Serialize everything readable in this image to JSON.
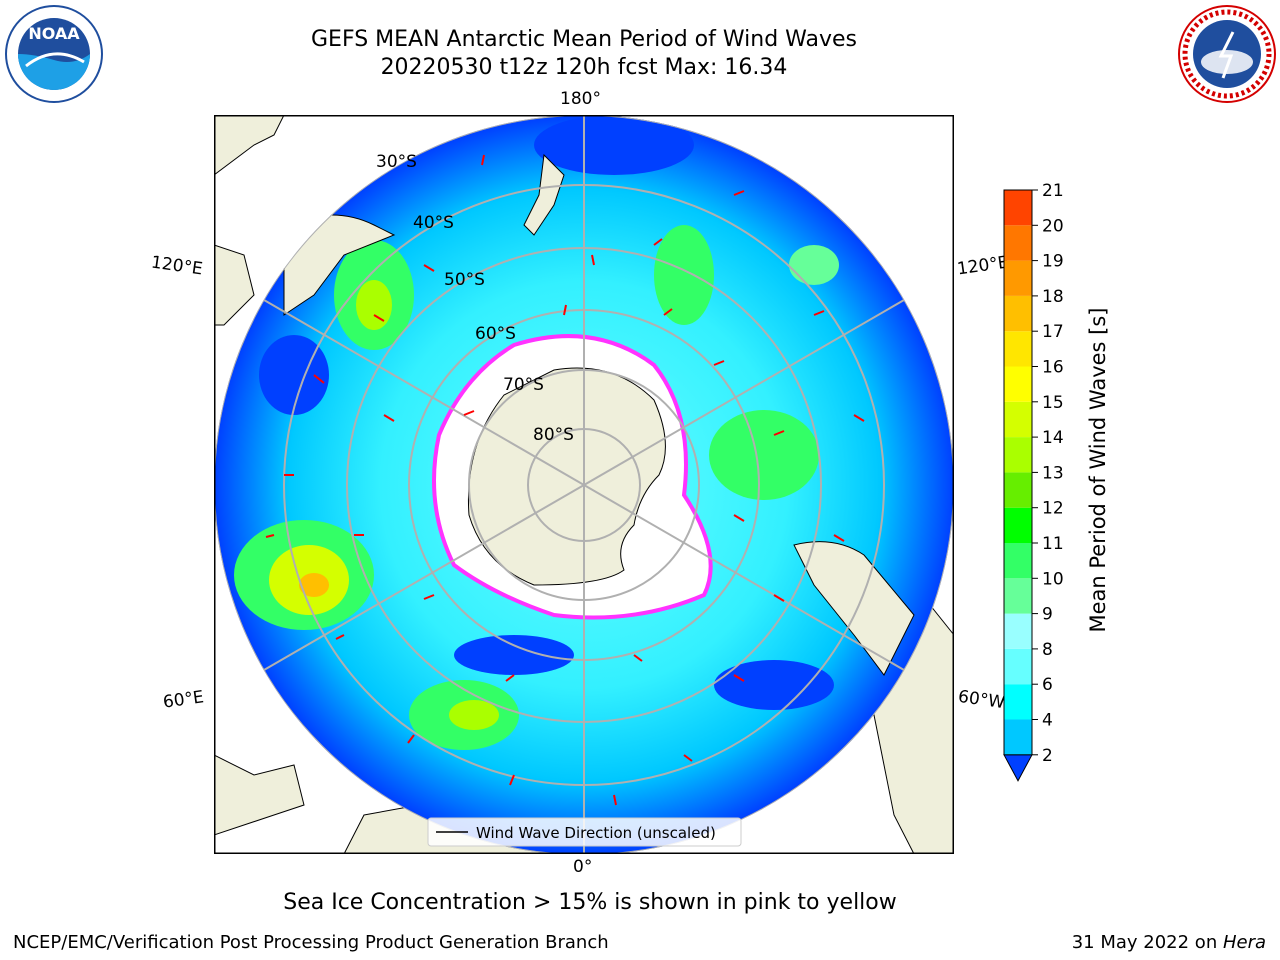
{
  "title": "GEFS MEAN Antarctic Mean Period of Wind Waves",
  "subtitle": "20220530 t12z 120h fcst   Max: 16.34",
  "caption": "Sea Ice Concentration > 15% is shown in pink to yellow",
  "footer": {
    "left": "NCEP/EMC/Verification Post Processing Product Generation Branch",
    "right_date": "31 May 2022 on ",
    "right_host": "Hera"
  },
  "logos": {
    "left": "NOAA",
    "right": "National Weather Service"
  },
  "map": {
    "projection": "south polar stereographic",
    "lon_labels": [
      "180°",
      "0°",
      "120°E",
      "120°E",
      "60°E",
      "60°W"
    ],
    "lat_labels": [
      "30°S",
      "40°S",
      "50°S",
      "60°S",
      "70°S",
      "80°S"
    ],
    "legend": "Wind Wave Direction (unscaled)",
    "colors": {
      "land": "#efefdb",
      "ice": "#ffffff",
      "ice_edge": "#ff33ff",
      "arrow": "#ff0000",
      "grid": "#b0b0b0"
    }
  },
  "colorbar": {
    "label": "Mean Period of Wind Waves [s]",
    "ticks": [
      "2",
      "4",
      "6",
      "8",
      "9",
      "10",
      "11",
      "12",
      "13",
      "14",
      "15",
      "16",
      "17",
      "18",
      "19",
      "20",
      "21"
    ],
    "colors": [
      "#0040ff",
      "#00c8ff",
      "#00ffff",
      "#66ffff",
      "#99ffff",
      "#66ff99",
      "#33ff66",
      "#00ff00",
      "#66ee00",
      "#aaff00",
      "#d4ff00",
      "#ffff00",
      "#ffe600",
      "#ffbf00",
      "#ff9900",
      "#ff7700",
      "#ff4400",
      "#ff1a00"
    ]
  }
}
